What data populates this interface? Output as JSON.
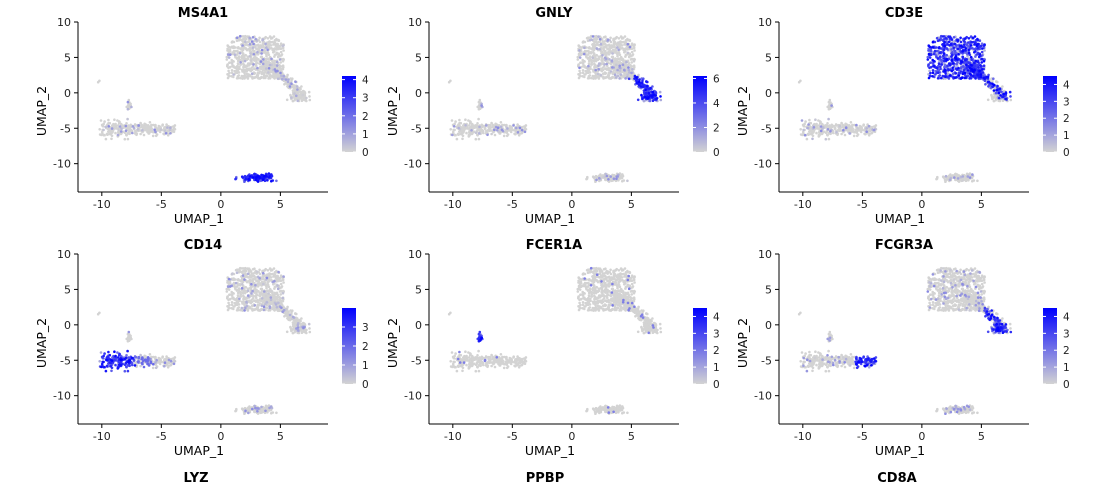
{
  "figure": {
    "bottom_titles": [
      "LYZ",
      "PPBP",
      "CD8A"
    ]
  },
  "chart_data": [
    {
      "type": "scatter",
      "title": "MS4A1",
      "xlabel": "UMAP_1",
      "ylabel": "UMAP_2",
      "xticks": [
        -10,
        -5,
        0,
        5
      ],
      "yticks": [
        10,
        5,
        0,
        -5,
        -10
      ],
      "xlim": [
        -12,
        9
      ],
      "ylim": [
        -14,
        10
      ],
      "colorbar": {
        "ticks": [
          0,
          1,
          2,
          3,
          4
        ],
        "max": 4.2,
        "low_color": "#d3d3d3",
        "high_color": "#0000ff"
      },
      "high_cluster": "b",
      "grid": false,
      "legend": "right"
    },
    {
      "type": "scatter",
      "title": "GNLY",
      "xlabel": "UMAP_1",
      "ylabel": "UMAP_2",
      "xticks": [
        -10,
        -5,
        0,
        5
      ],
      "yticks": [
        10,
        5,
        0,
        -5,
        -10
      ],
      "xlim": [
        -12,
        9
      ],
      "ylim": [
        -14,
        10
      ],
      "colorbar": {
        "ticks": [
          0,
          2,
          4,
          6
        ],
        "max": 6.2,
        "low_color": "#d3d3d3",
        "high_color": "#0000ff"
      },
      "high_cluster": "nk",
      "grid": false,
      "legend": "right"
    },
    {
      "type": "scatter",
      "title": "CD3E",
      "xlabel": "UMAP_1",
      "ylabel": "UMAP_2",
      "xticks": [
        -10,
        -5,
        0,
        5
      ],
      "yticks": [
        10,
        5,
        0,
        -5,
        -10
      ],
      "xlim": [
        -12,
        9
      ],
      "ylim": [
        -14,
        10
      ],
      "colorbar": {
        "ticks": [
          0,
          1,
          2,
          3,
          4
        ],
        "max": 4.5,
        "low_color": "#d3d3d3",
        "high_color": "#0000ff"
      },
      "high_cluster": "t",
      "grid": false,
      "legend": "right"
    },
    {
      "type": "scatter",
      "title": "CD14",
      "xlabel": "UMAP_1",
      "ylabel": "UMAP_2",
      "xticks": [
        -10,
        -5,
        0,
        5
      ],
      "yticks": [
        10,
        5,
        0,
        -5,
        -10
      ],
      "xlim": [
        -12,
        9
      ],
      "ylim": [
        -14,
        10
      ],
      "colorbar": {
        "ticks": [
          0,
          1,
          2,
          3
        ],
        "max": 4.0,
        "low_color": "#d3d3d3",
        "high_color": "#0000ff"
      },
      "high_cluster": "mono14",
      "grid": false,
      "legend": "right"
    },
    {
      "type": "scatter",
      "title": "FCER1A",
      "xlabel": "UMAP_1",
      "ylabel": "UMAP_2",
      "xticks": [
        -10,
        -5,
        0,
        5
      ],
      "yticks": [
        10,
        5,
        0,
        -5,
        -10
      ],
      "xlim": [
        -12,
        9
      ],
      "ylim": [
        -14,
        10
      ],
      "colorbar": {
        "ticks": [
          0,
          1,
          2,
          3,
          4
        ],
        "max": 4.5,
        "low_color": "#d3d3d3",
        "high_color": "#0000ff"
      },
      "high_cluster": "dc",
      "grid": false,
      "legend": "right"
    },
    {
      "type": "scatter",
      "title": "FCGR3A",
      "xlabel": "UMAP_1",
      "ylabel": "UMAP_2",
      "xticks": [
        -10,
        -5,
        0,
        5
      ],
      "yticks": [
        10,
        5,
        0,
        -5,
        -10
      ],
      "xlim": [
        -12,
        9
      ],
      "ylim": [
        -14,
        10
      ],
      "colorbar": {
        "ticks": [
          0,
          1,
          2,
          3,
          4
        ],
        "max": 4.5,
        "low_color": "#d3d3d3",
        "high_color": "#0000ff"
      },
      "high_cluster": "fcgr3a",
      "grid": false,
      "legend": "right"
    }
  ]
}
